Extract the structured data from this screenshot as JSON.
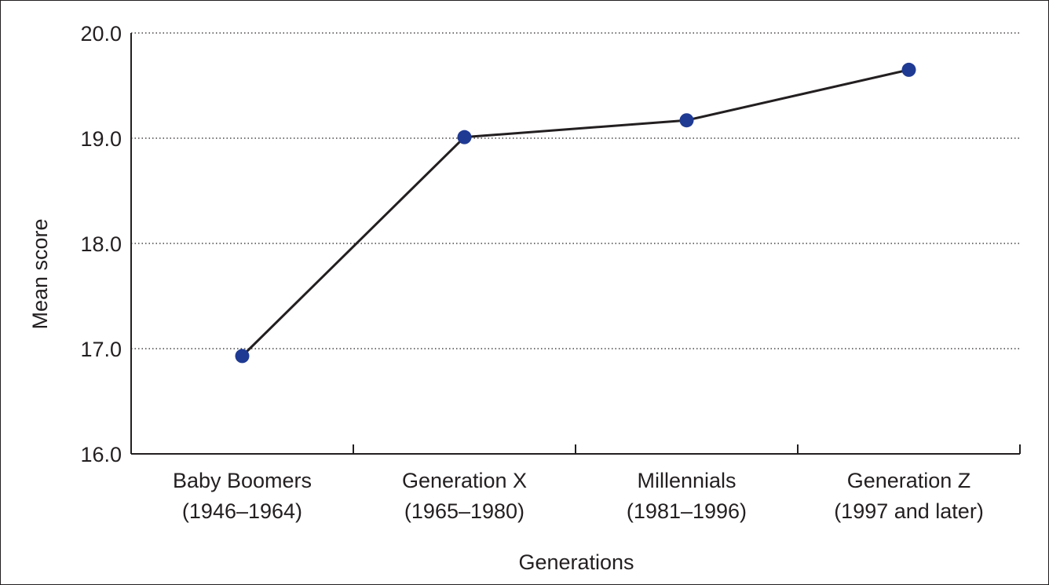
{
  "chart_data": {
    "type": "line",
    "title": "",
    "xlabel": "Generations",
    "ylabel": "Mean score",
    "ylim": [
      16.0,
      20.0
    ],
    "yticks": [
      "16.0",
      "17.0",
      "18.0",
      "19.0",
      "20.0"
    ],
    "grid": "horizontal dotted",
    "categories": [
      {
        "line1": "Baby Boomers",
        "line2": "(1946–1964)"
      },
      {
        "line1": "Generation X",
        "line2": "(1965–1980)"
      },
      {
        "line1": "Millennials",
        "line2": "(1981–1996)"
      },
      {
        "line1": "Generation Z",
        "line2": "(1997 and later)"
      }
    ],
    "series": [
      {
        "values": [
          16.93,
          19.01,
          19.17,
          19.65
        ]
      }
    ],
    "colors": {
      "line": "#231f20",
      "marker": "#1f3a93",
      "axis": "#231f20",
      "grid": "#231f20"
    }
  }
}
